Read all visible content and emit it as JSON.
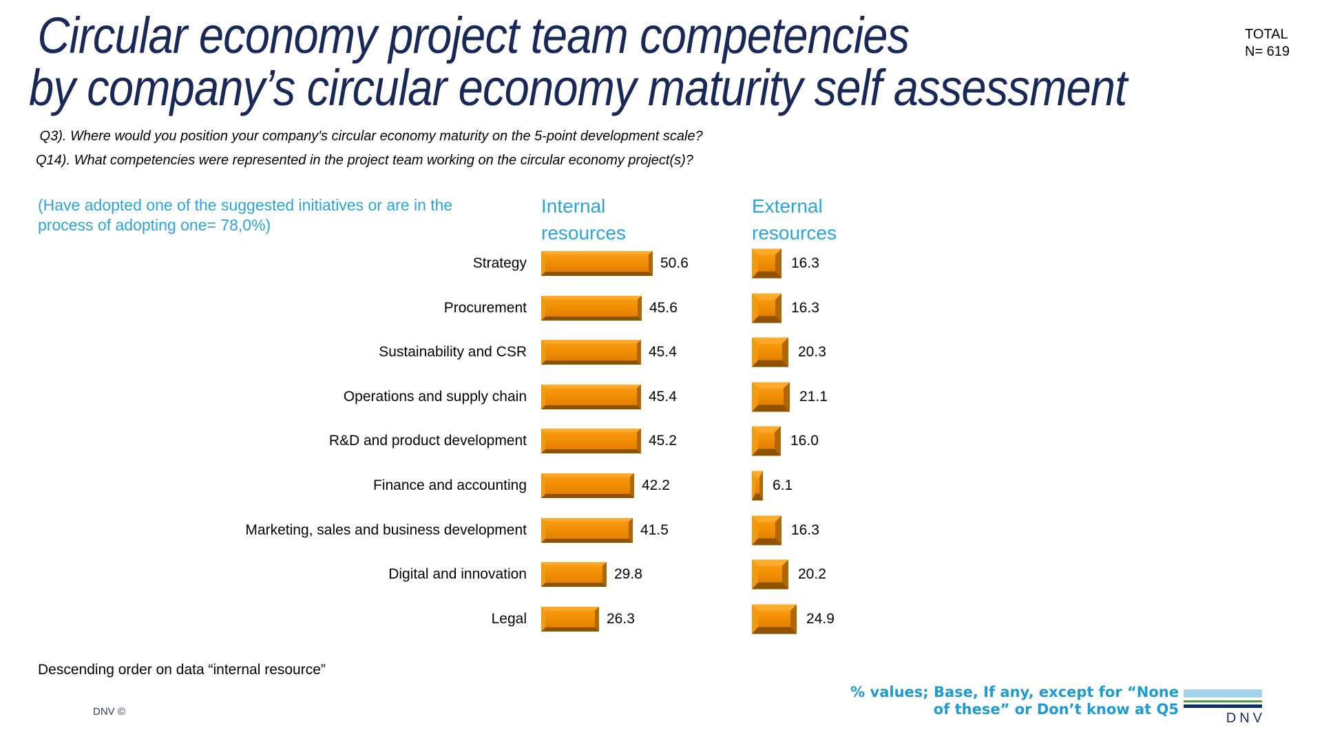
{
  "header": {
    "title_line1": "Circular economy project team competencies",
    "title_line2": "by company’s circular economy maturity self assessment",
    "total_label": "TOTAL",
    "total_value": "N= 619",
    "question_q3": " Q3). Where would you position your company's circular economy maturity on the 5-point development scale?",
    "question_q14": "Q14). What competencies were represented in the project team working on the circular economy project(s)?"
  },
  "annotation": {
    "adoption_note": "(Have adopted one of the suggested initiatives or are in the process of adopting one= 78,0%)"
  },
  "columns": {
    "internal_header": "Internal resources",
    "external_header": "External resources"
  },
  "chart_data": {
    "type": "bar",
    "orientation": "horizontal",
    "title": "Circular economy project team competencies by company’s circular economy maturity self assessment",
    "categories": [
      "Strategy",
      "Procurement",
      "Sustainability and CSR",
      "Operations and supply chain",
      "R&D and product development",
      "Finance and accounting",
      "Marketing, sales and business development",
      "Digital and innovation",
      "Legal"
    ],
    "series": [
      {
        "name": "Internal resources",
        "values": [
          50.6,
          45.6,
          45.4,
          45.4,
          45.2,
          42.2,
          41.5,
          29.8,
          26.3
        ]
      },
      {
        "name": "External resources",
        "values": [
          16.3,
          16.3,
          20.3,
          21.1,
          16.0,
          6.1,
          16.3,
          20.2,
          24.9
        ]
      }
    ],
    "value_labels": true,
    "value_decimals": 1,
    "sort": "Descending order on data “internal resource”",
    "bar_color": "#ED8A00",
    "xlim": [
      0,
      55
    ],
    "grid": false,
    "legend_position": "column-headers-top"
  },
  "footer": {
    "sort_note": "Descending order on data “internal resource”",
    "copyright": "DNV ©",
    "base_note_line1": "% values; Base, If any, except for “None",
    "base_note_line2": "of these” or Don’t know at Q5",
    "logo_text": "DNV"
  },
  "colors": {
    "title_navy": "#182858",
    "accent_blue": "#29A3DC",
    "base_note_blue": "#1E9AD2",
    "bar_orange": "#ED8A00",
    "bar_bevel_light": "#FFAA2B",
    "bar_bevel_dark": "#8F5300",
    "logo_lightblue": "#A3D4E9",
    "logo_green": "#55973F",
    "logo_navy": "#0E2E67"
  }
}
